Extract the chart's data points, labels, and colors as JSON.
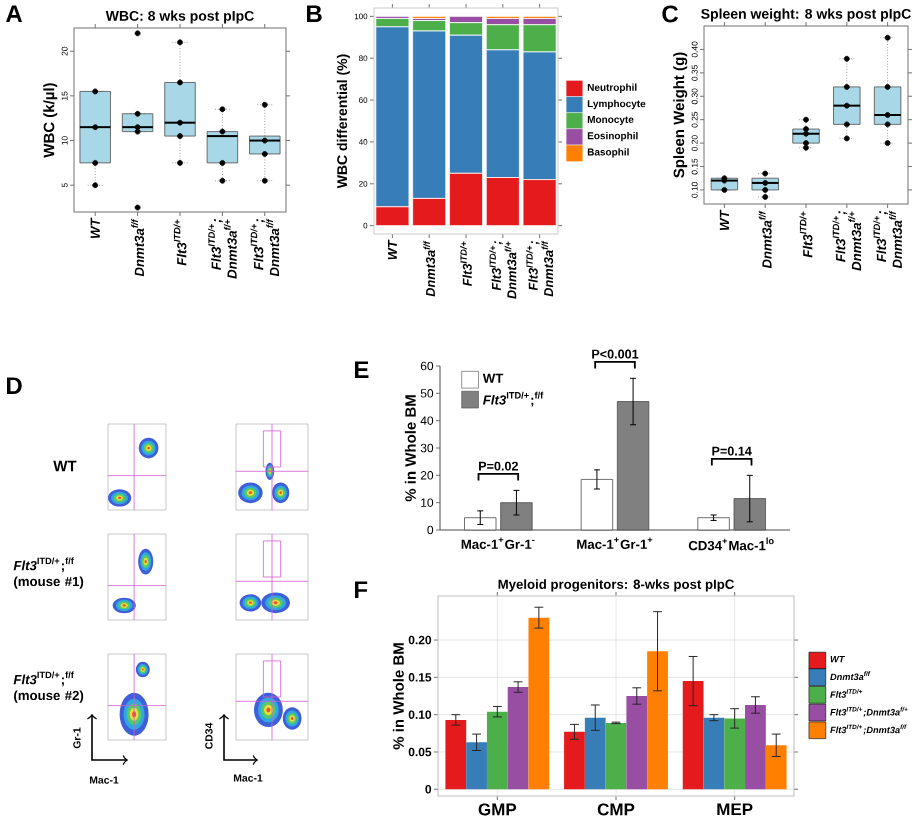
{
  "chart_data": [
    {
      "type": "box",
      "title": "WBC: 8 wks post pIpC",
      "ylabel": "WBC (k/µl)",
      "annotations": [
        "A"
      ],
      "categories": [
        "WT",
        "Dnmt3a$^{f/f}$",
        "Flt3$^{ITD/+}$",
        "Flt3$^{ITD/+}$; Dnmt3a$^{f/+}$",
        "Flt3$^{ITD/+}$; Dnmt3a$^{f/f}$"
      ],
      "series": [
        {
          "type": "box",
          "color": "#a8d8e8",
          "boxes": [
            {
              "low": 5,
              "q1": 7.5,
              "median": 11.5,
              "q3": 15.5,
              "high": 15.5
            },
            {
              "low": 11,
              "q1": 11,
              "median": 11.5,
              "q3": 13,
              "high": 13,
              "outliers": [
                22,
                2.5
              ]
            },
            {
              "low": 7.5,
              "q1": 10.5,
              "median": 12,
              "q3": 16.5,
              "high": 21
            },
            {
              "low": 5.5,
              "q1": 7.5,
              "median": 10.5,
              "q3": 11,
              "high": 13.5
            },
            {
              "low": 5.5,
              "q1": 8.5,
              "median": 10,
              "q3": 10.5,
              "high": 14
            }
          ]
        },
        {
          "type": "scatter",
          "color": "#000000",
          "x": [
            "WT",
            "WT",
            "WT",
            "WT",
            "Dnmt3a$^{f/f}$",
            "Dnmt3a$^{f/f}$",
            "Dnmt3a$^{f/f}$",
            "Flt3$^{ITD/+}$",
            "Flt3$^{ITD/+}$",
            "Flt3$^{ITD/+}$",
            "Flt3$^{ITD/+}$",
            "Flt3$^{ITD/+}$",
            "Flt3$^{ITD/+}$; Dnmt3a$^{f/+}$",
            "Flt3$^{ITD/+}$; Dnmt3a$^{f/+}$",
            "Flt3$^{ITD/+}$; Dnmt3a$^{f/+}$",
            "Flt3$^{ITD/+}$; Dnmt3a$^{f/+}$",
            "Flt3$^{ITD/+}$; Dnmt3a$^{f/f}$",
            "Flt3$^{ITD/+}$; Dnmt3a$^{f/f}$",
            "Flt3$^{ITD/+}$; Dnmt3a$^{f/f}$",
            "Flt3$^{ITD/+}$; Dnmt3a$^{f/f}$"
          ],
          "values": [
            15.5,
            11.5,
            7.5,
            5,
            13,
            11.5,
            11,
            21,
            16.5,
            12,
            10.5,
            7.5,
            13.5,
            11,
            7.5,
            5.5,
            14,
            10,
            8.5,
            5.5
          ]
        }
      ],
      "ylim": [
        2,
        22.6
      ],
      "yticks": [
        5,
        10,
        15,
        20
      ],
      "marker": "circle"
    },
    {
      "type": "bar",
      "stacked": true,
      "ylabel": "WBC differential (%)",
      "annotations": [
        "B"
      ],
      "categories": [
        "WT",
        "Dnmt3a$^{f/f}$",
        "Flt3$^{ITD/+}$",
        "Flt3$^{ITD/+}$; Dnmt3a$^{f/+}$",
        "Flt3$^{ITD/+}$; Dnmt3a$^{f/f}$"
      ],
      "series": [
        {
          "name": "Neutrophil",
          "color": "#e41a1c",
          "values": [
            9,
            13,
            25,
            23,
            22
          ]
        },
        {
          "name": "Lymphocyte",
          "color": "#377eb8",
          "values": [
            86,
            80,
            66,
            61,
            61
          ]
        },
        {
          "name": "Monocyte",
          "color": "#4daf4a",
          "values": [
            4,
            5,
            6,
            12,
            13
          ]
        },
        {
          "name": "Eosinophil",
          "color": "#984ea3",
          "values": [
            1,
            1,
            3,
            3,
            3
          ]
        },
        {
          "name": "Basophil",
          "color": "#ff7f00",
          "values": [
            0,
            1,
            0,
            1,
            1
          ]
        }
      ],
      "ylim": [
        -4,
        104
      ],
      "yticks": [
        0,
        20,
        40,
        60,
        80,
        100
      ],
      "legend": "right"
    },
    {
      "type": "box",
      "title": "Spleen weight: 8 wks post pIpC",
      "ylabel": "Spleen Weight (g)",
      "annotations": [
        "C"
      ],
      "categories": [
        "WT",
        "Dnmt3a$^{f/f}$",
        "Flt3$^{ITD/+}$",
        "Flt3$^{ITD/+}$; Dnmt3a$^{f/+}$",
        "Flt3$^{ITD/+}$; Dnmt3a$^{f/f}$"
      ],
      "series": [
        {
          "type": "box",
          "color": "#a8d8e8",
          "boxes": [
            {
              "low": 0.1,
              "q1": 0.1,
              "median": 0.12,
              "q3": 0.125,
              "high": 0.125
            },
            {
              "low": 0.085,
              "q1": 0.1,
              "median": 0.115,
              "q3": 0.125,
              "high": 0.135
            },
            {
              "low": 0.19,
              "q1": 0.2,
              "median": 0.22,
              "q3": 0.23,
              "high": 0.25
            },
            {
              "low": 0.21,
              "q1": 0.24,
              "median": 0.28,
              "q3": 0.32,
              "high": 0.38
            },
            {
              "low": 0.2,
              "q1": 0.24,
              "median": 0.26,
              "q3": 0.32,
              "high": 0.425
            }
          ]
        },
        {
          "type": "scatter",
          "color": "#000000",
          "x": [
            "WT",
            "WT",
            "WT",
            "Dnmt3a$^{f/f}$",
            "Dnmt3a$^{f/f}$",
            "Dnmt3a$^{f/f}$",
            "Dnmt3a$^{f/f}$",
            "Flt3$^{ITD/+}$",
            "Flt3$^{ITD/+}$",
            "Flt3$^{ITD/+}$",
            "Flt3$^{ITD/+}$",
            "Flt3$^{ITD/+}$",
            "Flt3$^{ITD/+}$; Dnmt3a$^{f/+}$",
            "Flt3$^{ITD/+}$; Dnmt3a$^{f/+}$",
            "Flt3$^{ITD/+}$; Dnmt3a$^{f/+}$",
            "Flt3$^{ITD/+}$; Dnmt3a$^{f/+}$",
            "Flt3$^{ITD/+}$; Dnmt3a$^{f/+}$",
            "Flt3$^{ITD/+}$; Dnmt3a$^{f/f}$",
            "Flt3$^{ITD/+}$; Dnmt3a$^{f/f}$",
            "Flt3$^{ITD/+}$; Dnmt3a$^{f/f}$",
            "Flt3$^{ITD/+}$; Dnmt3a$^{f/f}$",
            "Flt3$^{ITD/+}$; Dnmt3a$^{f/f}$"
          ],
          "values": [
            0.125,
            0.12,
            0.1,
            0.135,
            0.115,
            0.1,
            0.085,
            0.25,
            0.23,
            0.22,
            0.2,
            0.19,
            0.38,
            0.32,
            0.28,
            0.24,
            0.21,
            0.425,
            0.32,
            0.26,
            0.24,
            0.2
          ]
        }
      ],
      "ylim": [
        0.07,
        0.45
      ],
      "yticks": [
        {
          "value": 0.1,
          "label": "0.10"
        },
        0.15,
        {
          "value": 0.2,
          "label": "0.20"
        },
        0.25,
        {
          "value": 0.3,
          "label": "0.30"
        },
        0.35,
        {
          "value": 0.4,
          "label": "0.40"
        }
      ],
      "marker": "circle"
    },
    {
      "type": "other",
      "annotations": [
        "D",
        "WT",
        "*Flt3*$^{ITD/+}$;$^{f/f}$ (mouse #1)",
        "*Flt3*$^{ITD/+}$;$^{f/f}$ (mouse #2)",
        "Gr-1",
        "Mac-1",
        "CD34",
        "Mac-1"
      ]
    },
    {
      "type": "bar",
      "ylabel": "% in Whole BM",
      "annotations": [
        "E",
        "P=0.02",
        "P<0.001",
        "P=0.14"
      ],
      "categories": [
        "Mac-1$^{+}$Gr-1$^{-}$",
        "Mac-1$^{+}$Gr-1$^{+}$",
        "CD34$^{+}$Mac-1$^{lo}$"
      ],
      "series": [
        {
          "name": "WT",
          "color": "#ffffff",
          "values": [
            4.5,
            18.5,
            4.5
          ],
          "errors": [
            2.5,
            3.5,
            1
          ]
        },
        {
          "name": "*Flt3*$^{ITD/+}$;$^{f/f}$",
          "color": "#808080",
          "values": [
            10,
            47,
            11.5
          ],
          "errors": [
            4.5,
            8.5,
            8.5
          ]
        }
      ],
      "ylim": [
        0,
        60
      ],
      "yticks": [
        0,
        10,
        20,
        30,
        40,
        50,
        60
      ],
      "legend": "top left"
    },
    {
      "type": "bar",
      "title": "Myeloid progenitors: 8-wks post pIpC",
      "ylabel": "% in Whole BM",
      "annotations": [
        "F"
      ],
      "categories": [
        "GMP",
        "CMP",
        "MEP"
      ],
      "series": [
        {
          "name": "WT",
          "color": "#e41a1c",
          "values": [
            0.093,
            0.077,
            0.145
          ],
          "errors": [
            0.007,
            0.01,
            0.033
          ]
        },
        {
          "name": "Dnmt3a$^{f/f}$",
          "color": "#377eb8",
          "values": [
            0.063,
            0.096,
            0.096
          ],
          "errors": [
            0.011,
            0.017,
            0.004
          ]
        },
        {
          "name": "Flt3$^{ITD/+}$",
          "color": "#4daf4a",
          "values": [
            0.104,
            0.089,
            0.095
          ],
          "errors": [
            0.007,
            0.001,
            0.013
          ]
        },
        {
          "name": "Flt3$^{ITD/+}$;Dnmt3a$^{f/+}$",
          "color": "#984ea3",
          "values": [
            0.137,
            0.125,
            0.113
          ],
          "errors": [
            0.007,
            0.011,
            0.011
          ]
        },
        {
          "name": "Flt3$^{ITD/+}$;Dnmt3a$^{f/f}$",
          "color": "#ff7f00",
          "values": [
            0.23,
            0.185,
            0.059
          ],
          "errors": [
            0.014,
            0.053,
            0.015
          ]
        }
      ],
      "ylim": [
        -0.009,
        0.259
      ],
      "yticks": [
        0,
        0.05,
        {
          "value": 0.1,
          "label": "0.10"
        },
        0.15,
        {
          "value": 0.2,
          "label": "0.20"
        }
      ],
      "grid": true,
      "legend": "right"
    }
  ]
}
